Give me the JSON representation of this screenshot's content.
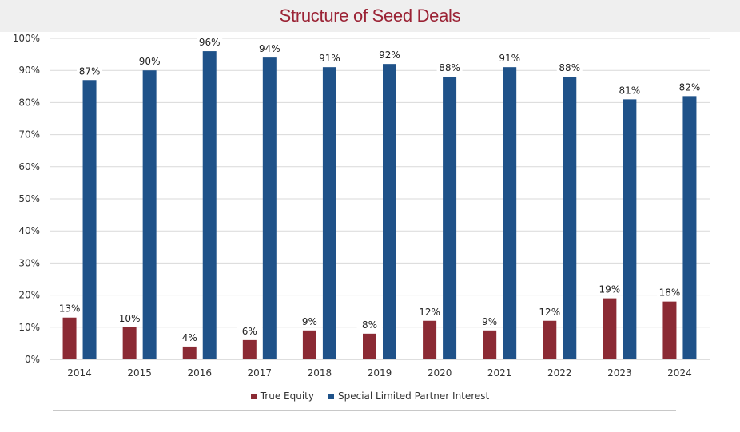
{
  "title": "Structure of Seed Deals",
  "colors": {
    "true_equity": "#8b2a34",
    "special_lp": "#1f5289",
    "title": "#9b2335"
  },
  "chart_data": {
    "type": "bar",
    "title": "Structure of Seed Deals",
    "categories": [
      "2014",
      "2015",
      "2016",
      "2017",
      "2018",
      "2019",
      "2020",
      "2021",
      "2022",
      "2023",
      "2024"
    ],
    "series": [
      {
        "name": "True Equity",
        "values": [
          13,
          10,
          4,
          6,
          9,
          8,
          12,
          9,
          12,
          19,
          18
        ]
      },
      {
        "name": "Special Limited Partner Interest",
        "values": [
          87,
          90,
          96,
          94,
          91,
          92,
          88,
          91,
          88,
          81,
          82
        ]
      }
    ],
    "y_ticks": [
      "0%",
      "10%",
      "20%",
      "30%",
      "40%",
      "50%",
      "60%",
      "70%",
      "80%",
      "90%",
      "100%"
    ],
    "ylim": [
      0,
      100
    ],
    "grid": true,
    "legend_position": "bottom",
    "xlabel": "",
    "ylabel": ""
  }
}
